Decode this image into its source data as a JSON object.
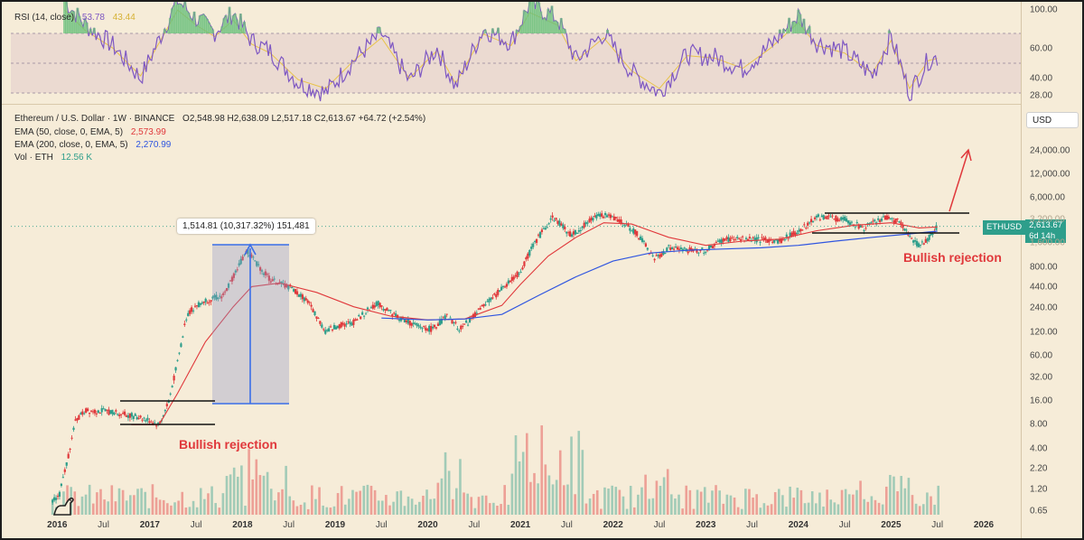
{
  "rsi_header": {
    "label": "RSI (14, close)",
    "value": "53.78",
    "ma_value": "43.44"
  },
  "legend": {
    "title": "Ethereum / U.S. Dollar · 1W · BINANCE",
    "ohlc": "O2,548.98 H2,638.09 L2,517.18 C2,613.67 +64.72 (+2.54%)",
    "ema50_label": "EMA (50, close, 0, EMA, 5)",
    "ema50_value": "2,573.99",
    "ema200_label": "EMA (200, close, 0, EMA, 5)",
    "ema200_value": "2,270.99",
    "vol_label": "Vol · ETH",
    "vol_value": "12.56 K"
  },
  "currency_button": "USD",
  "price_tag": {
    "symbol": "ETHUSD",
    "price": "2,613.67",
    "countdown": "6d 14h"
  },
  "measure_label": "1,514.81 (10,317.32%) 151,481",
  "annotations": {
    "left": "Bullish rejection",
    "right": "Bullish rejection"
  },
  "colors": {
    "background": "#f6ecd8",
    "up": "#2e9e8b",
    "down": "#e0383b",
    "ema50": "#e0383b",
    "ema200": "#2f55e0",
    "rsi_line": "#7e57c2",
    "rsi_ma": "#e8c34a",
    "rsi_band": "#7e57c2"
  },
  "chart_data": [
    {
      "type": "line",
      "title": "RSI (14, close)",
      "y_ticks": [
        "100.00",
        "60.00",
        "40.00",
        "28.00"
      ],
      "ylim": [
        20,
        100
      ],
      "bands": {
        "upper": 70,
        "middle": 50,
        "lower": 30
      },
      "series": [
        {
          "name": "RSI (14, close)",
          "x": [
            2016.08,
            2016.3,
            2016.6,
            2016.9,
            2017.1,
            2017.3,
            2017.5,
            2017.7,
            2017.9,
            2018.1,
            2018.3,
            2018.6,
            2018.9,
            2019.2,
            2019.5,
            2019.8,
            2020.1,
            2020.3,
            2020.6,
            2020.9,
            2021.1,
            2021.4,
            2021.6,
            2021.9,
            2022.2,
            2022.5,
            2022.8,
            2023.1,
            2023.4,
            2023.7,
            2024.0,
            2024.2,
            2024.5,
            2024.8,
            2025.0,
            2025.2,
            2025.4,
            2025.5
          ],
          "values": [
            92,
            76,
            62,
            40,
            66,
            92,
            80,
            71,
            84,
            65,
            58,
            37,
            30,
            52,
            70,
            38,
            60,
            34,
            73,
            64,
            90,
            80,
            52,
            70,
            44,
            30,
            56,
            54,
            46,
            62,
            82,
            64,
            58,
            42,
            68,
            30,
            52,
            53.78
          ]
        }
      ]
    },
    {
      "type": "line",
      "title": "Ethereum / U.S. Dollar · 1W · BINANCE",
      "scale": "log",
      "y_ticks": [
        "24,000.00",
        "12,000.00",
        "6,000.00",
        "3,200.00",
        "1,600.00",
        "800.00",
        "440.00",
        "240.00",
        "120.00",
        "60.00",
        "32.00",
        "16.00",
        "8.00",
        "4.00",
        "2.20",
        "1.20",
        "0.65"
      ],
      "x_ticks": [
        "2016",
        "Jul",
        "2017",
        "Jul",
        "2018",
        "Jul",
        "2019",
        "Jul",
        "2020",
        "Jul",
        "2021",
        "Jul",
        "2022",
        "Jul",
        "2023",
        "Jul",
        "2024",
        "Jul",
        "2025",
        "Jul",
        "2026"
      ],
      "series": [
        {
          "name": "ETHUSD",
          "x": [
            2015.95,
            2016.02,
            2016.1,
            2016.2,
            2016.3,
            2016.5,
            2016.7,
            2016.9,
            2017.0,
            2017.1,
            2017.2,
            2017.3,
            2017.4,
            2017.5,
            2017.6,
            2017.8,
            2017.95,
            2018.05,
            2018.15,
            2018.3,
            2018.5,
            2018.7,
            2018.9,
            2019.0,
            2019.2,
            2019.45,
            2019.7,
            2019.9,
            2020.05,
            2020.2,
            2020.35,
            2020.55,
            2020.8,
            2021.0,
            2021.15,
            2021.35,
            2021.55,
            2021.85,
            2022.05,
            2022.25,
            2022.45,
            2022.6,
            2022.8,
            2023.0,
            2023.2,
            2023.5,
            2023.8,
            2024.0,
            2024.2,
            2024.5,
            2024.7,
            2024.95,
            2025.1,
            2025.2,
            2025.3,
            2025.4,
            2025.5
          ],
          "values": [
            0.9,
            1.0,
            2.5,
            9,
            12,
            12,
            11,
            10,
            9,
            8,
            15,
            50,
            200,
            260,
            300,
            350,
            800,
            1300,
            900,
            550,
            450,
            300,
            120,
            140,
            160,
            280,
            180,
            140,
            130,
            190,
            130,
            220,
            420,
            700,
            1600,
            3500,
            2000,
            3800,
            3200,
            2200,
            1000,
            1400,
            1300,
            1300,
            1800,
            1800,
            1700,
            2300,
            3500,
            3200,
            2500,
            3400,
            3000,
            1900,
            1500,
            1800,
            2613.67
          ]
        },
        {
          "name": "EMA (50, close, 0, EMA, 5)",
          "x": [
            2016.8,
            2017.1,
            2017.3,
            2017.6,
            2017.9,
            2018.1,
            2018.4,
            2018.8,
            2019.2,
            2019.6,
            2020.0,
            2020.4,
            2020.8,
            2021.0,
            2021.3,
            2021.6,
            2021.9,
            2022.2,
            2022.6,
            2023.0,
            2023.4,
            2023.8,
            2024.2,
            2024.6,
            2025.0,
            2025.3,
            2025.5
          ],
          "values": [
            8,
            8,
            20,
            90,
            250,
            450,
            500,
            380,
            250,
            190,
            170,
            175,
            260,
            480,
            1100,
            1900,
            2900,
            2800,
            1900,
            1500,
            1700,
            1800,
            2300,
            2700,
            2900,
            2500,
            2573.99
          ]
        },
        {
          "name": "EMA (200, close, 0, EMA, 5)",
          "x": [
            2019.5,
            2020.0,
            2020.4,
            2020.8,
            2021.2,
            2021.6,
            2022.0,
            2022.4,
            2022.8,
            2023.2,
            2023.6,
            2024.0,
            2024.4,
            2024.8,
            2025.2,
            2025.5
          ],
          "values": [
            180,
            170,
            175,
            200,
            350,
            600,
            950,
            1200,
            1300,
            1350,
            1400,
            1500,
            1700,
            1900,
            2100,
            2270.99
          ]
        }
      ],
      "annotations": [
        "Bullish rejection",
        "Bullish rejection",
        "1,514.81 (10,317.32%) 151,481"
      ]
    }
  ]
}
